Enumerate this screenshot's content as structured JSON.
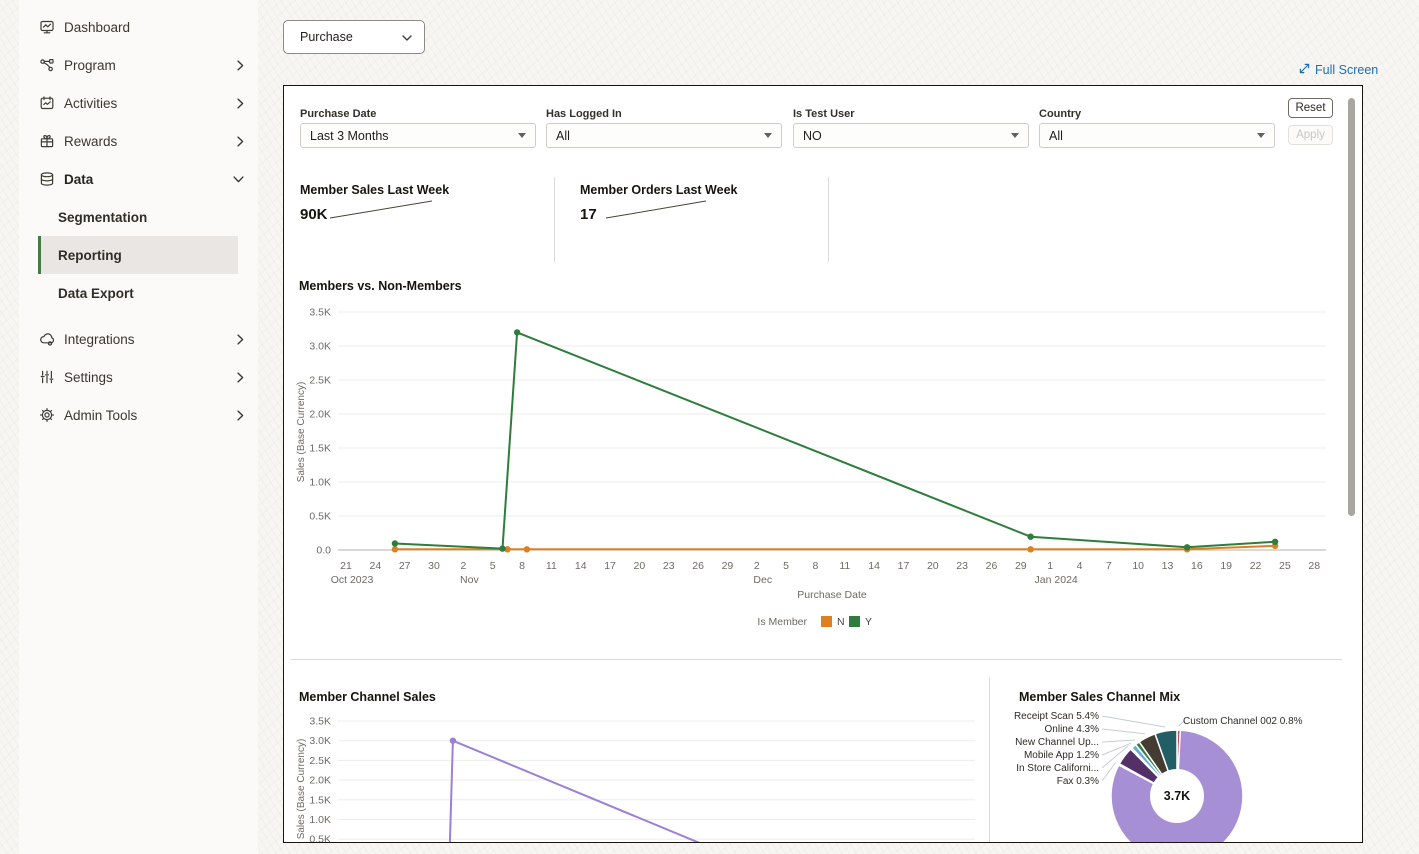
{
  "colors": {
    "accent_green": "#457a44",
    "link_blue": "#1e6fb0",
    "member_n_orange": "#dd8020",
    "member_y_green": "#2e7d3c",
    "channel_purple": "#9b80d6"
  },
  "sidebar": {
    "items": [
      {
        "label": "Dashboard",
        "icon": "dashboard-icon",
        "chevron": null,
        "expanded": false
      },
      {
        "label": "Program",
        "icon": "program-icon",
        "chevron": "right",
        "expanded": false
      },
      {
        "label": "Activities",
        "icon": "activities-icon",
        "chevron": "right",
        "expanded": false
      },
      {
        "label": "Rewards",
        "icon": "rewards-icon",
        "chevron": "right",
        "expanded": false
      },
      {
        "label": "Data",
        "icon": "data-icon",
        "chevron": "down",
        "expanded": true,
        "children": [
          {
            "label": "Segmentation",
            "active": false
          },
          {
            "label": "Reporting",
            "active": true
          },
          {
            "label": "Data Export",
            "active": false
          }
        ]
      },
      {
        "label": "Integrations",
        "icon": "integrations-icon",
        "chevron": "right",
        "expanded": false
      },
      {
        "label": "Settings",
        "icon": "settings-icon",
        "chevron": "right",
        "expanded": false
      },
      {
        "label": "Admin Tools",
        "icon": "admin-tools-icon",
        "chevron": "right",
        "expanded": false
      }
    ]
  },
  "toolbar": {
    "report_selector_value": "Purchase",
    "full_screen_label": "Full Screen"
  },
  "filters": {
    "fields": [
      {
        "label": "Purchase Date",
        "value": "Last 3 Months"
      },
      {
        "label": "Has Logged In",
        "value": "All"
      },
      {
        "label": "Is Test User",
        "value": "NO"
      },
      {
        "label": "Country",
        "value": "All"
      }
    ],
    "reset_label": "Reset",
    "apply_label": "Apply"
  },
  "kpis": [
    {
      "title": "Member Sales Last Week",
      "value": "90K"
    },
    {
      "title": "Member Orders Last Week",
      "value": "17"
    }
  ],
  "chart_data": [
    {
      "type": "line",
      "title": "Members vs. Non-Members",
      "xlabel": "Purchase Date",
      "ylabel": "Sales (Base Currency)",
      "ylim": [
        0,
        3500
      ],
      "ytick_labels": [
        "0.0",
        "0.5K",
        "1.0K",
        "1.5K",
        "2.0K",
        "2.5K",
        "3.0K",
        "3.5K"
      ],
      "x_axis": {
        "tick_interval_days": 3,
        "tick_labels": [
          "21",
          "24",
          "27",
          "30",
          "2",
          "5",
          "8",
          "11",
          "14",
          "17",
          "20",
          "23",
          "26",
          "29",
          "2",
          "5",
          "8",
          "11",
          "14",
          "17",
          "20",
          "23",
          "26",
          "29",
          "1",
          "4",
          "7",
          "10",
          "13",
          "16",
          "19",
          "22",
          "25",
          "28"
        ],
        "month_labels": [
          {
            "text": "Oct 2023",
            "day": 0
          },
          {
            "text": "Nov",
            "day": 12
          },
          {
            "text": "Dec",
            "day": 42
          },
          {
            "text": "Jan 2024",
            "day": 72
          }
        ]
      },
      "legend": {
        "title": "Is Member",
        "entries": [
          {
            "label": "N",
            "color": "#dd8020"
          },
          {
            "label": "Y",
            "color": "#2e7d3c"
          }
        ]
      },
      "series": [
        {
          "name": "N",
          "color": "#dd8020",
          "points": [
            [
              5,
              10
            ],
            [
              16.5,
              10
            ],
            [
              18.5,
              10
            ],
            [
              70,
              10
            ],
            [
              86,
              10
            ],
            [
              95,
              60
            ]
          ]
        },
        {
          "name": "Y",
          "color": "#2e7d3c",
          "points": [
            [
              5,
              95
            ],
            [
              16,
              20
            ],
            [
              17.5,
              3200
            ],
            [
              70,
              195
            ],
            [
              86,
              40
            ],
            [
              95,
              120
            ]
          ]
        }
      ]
    },
    {
      "type": "line",
      "title": "Member Channel Sales",
      "ylabel": "Sales (Base Currency)",
      "ylim": [
        0,
        3500
      ],
      "ytick_labels": [
        "0.5K",
        "1.0K",
        "1.5K",
        "2.0K",
        "2.5K",
        "3.0K",
        "3.5K"
      ],
      "series": [
        {
          "name": "Member Channel",
          "color": "#9b80d6",
          "points": [
            [
              17.4,
              0
            ],
            [
              18,
              3000
            ],
            [
              66,
              0
            ]
          ]
        }
      ]
    },
    {
      "type": "pie",
      "title": "Member Sales Channel Mix",
      "center_label": "3.7K",
      "slices": [
        {
          "label": "Custom Channel 002 0.8%",
          "value": 0.8,
          "color": "#b5525f"
        },
        {
          "label": "",
          "value": 82.0,
          "color": "#a78fd5"
        },
        {
          "label": "Fax 0.3%",
          "value": 0.3,
          "color": "#dba580"
        },
        {
          "label": "",
          "value": 4.5,
          "color": "#543069"
        },
        {
          "label": "In Store Californi...",
          "value": 0.4,
          "color": "#39789f"
        },
        {
          "label": "Mobile App 1.2%",
          "value": 1.2,
          "color": "#62b0d8"
        },
        {
          "label": "New Channel Up...",
          "value": 1.1,
          "color": "#3c7a47"
        },
        {
          "label": "Online 4.3%",
          "value": 4.3,
          "color": "#443b31"
        },
        {
          "label": "Receipt Scan 5.4%",
          "value": 5.4,
          "color": "#235e67"
        }
      ]
    }
  ]
}
